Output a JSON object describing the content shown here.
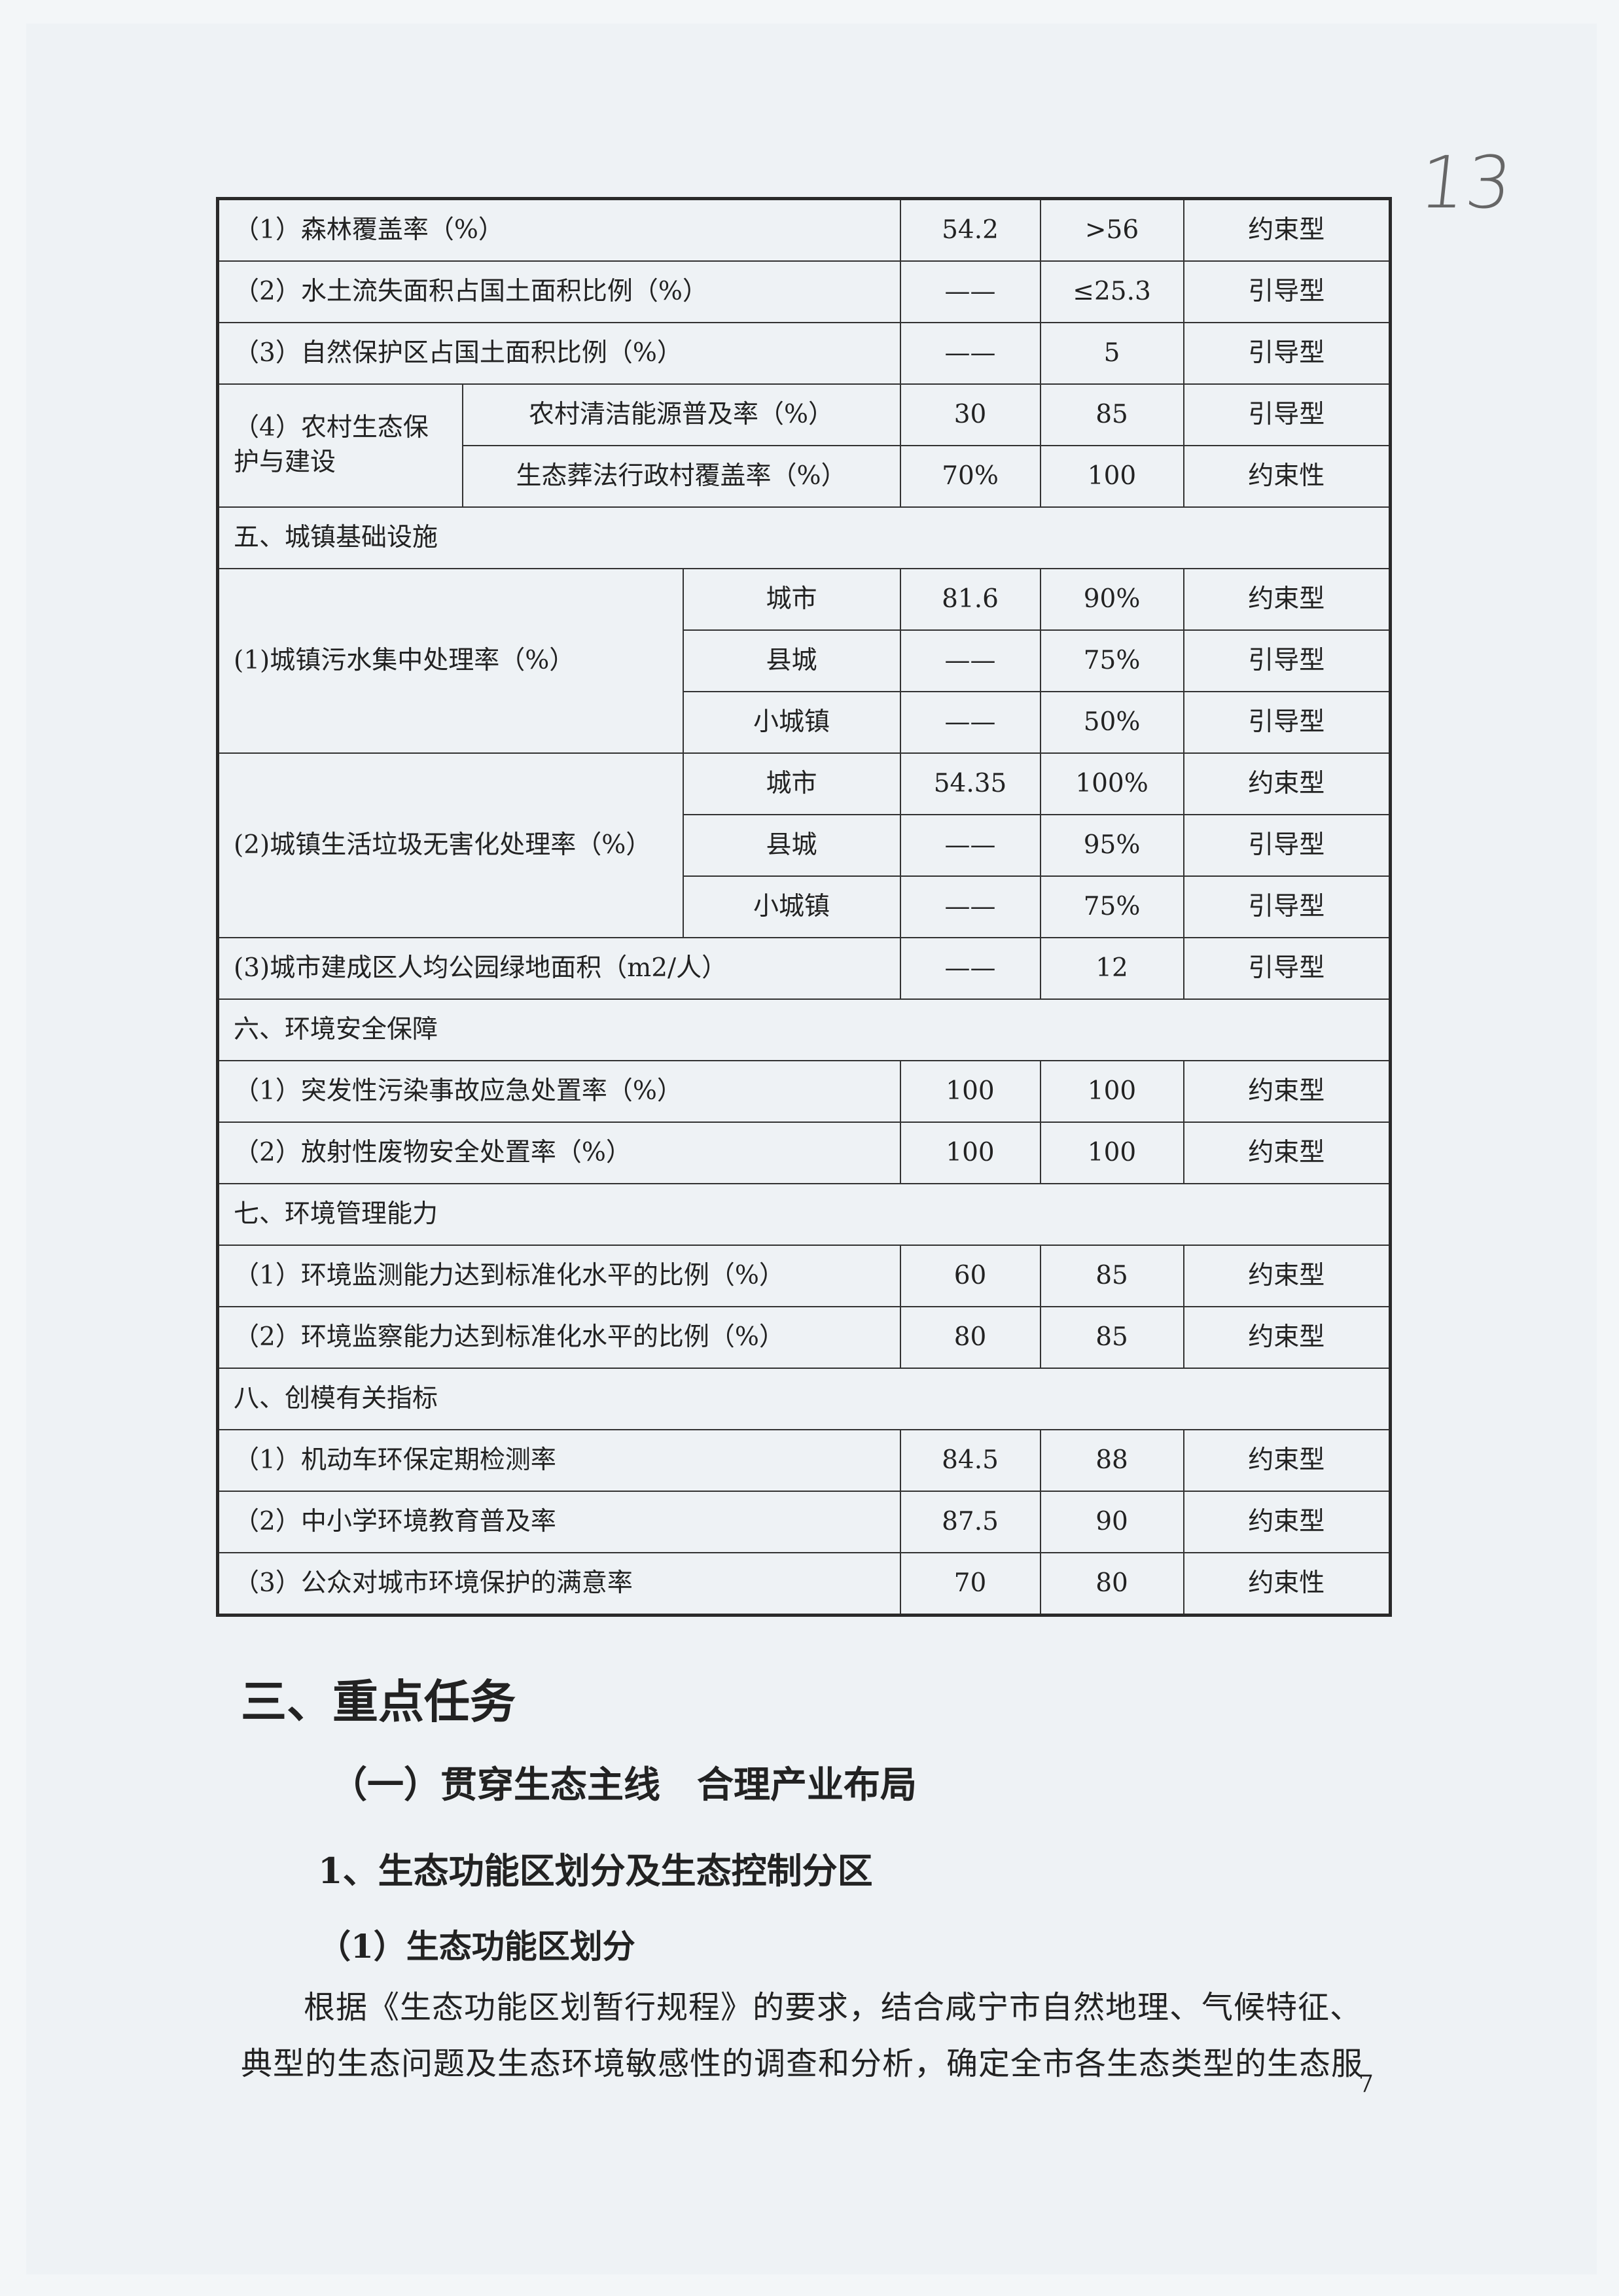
{
  "handwritten_page_mark": "13",
  "table": {
    "rows": [
      {
        "type": "item",
        "label": "（1）森林覆盖率（%）",
        "current": "54.2",
        "target": ">56",
        "kind": "约束型"
      },
      {
        "type": "item",
        "label": "（2）水土流失面积占国土面积比例（%）",
        "current": "——",
        "target": "≤25.3",
        "kind": "引导型"
      },
      {
        "type": "item",
        "label": "（3）自然保护区占国土面积比例（%）",
        "current": "——",
        "target": "5",
        "kind": "引导型"
      },
      {
        "type": "group2",
        "label": "（4）农村生态保护与建设",
        "subs": [
          {
            "label": "农村清洁能源普及率（%）",
            "current": "30",
            "target": "85",
            "kind": "引导型"
          },
          {
            "label": "生态葬法行政村覆盖率（%）",
            "current": "70%",
            "target": "100",
            "kind": "约束性"
          }
        ]
      },
      {
        "type": "section",
        "label": "五、城镇基础设施"
      },
      {
        "type": "group3",
        "label": "(1)城镇污水集中处理率（%）",
        "subs": [
          {
            "label": "城市",
            "current": "81.6",
            "target": "90%",
            "kind": "约束型"
          },
          {
            "label": "县城",
            "current": "——",
            "target": "75%",
            "kind": "引导型"
          },
          {
            "label": "小城镇",
            "current": "——",
            "target": "50%",
            "kind": "引导型"
          }
        ]
      },
      {
        "type": "group3",
        "label": "(2)城镇生活垃圾无害化处理率（%）",
        "subs": [
          {
            "label": "城市",
            "current": "54.35",
            "target": "100%",
            "kind": "约束型"
          },
          {
            "label": "县城",
            "current": "——",
            "target": "95%",
            "kind": "引导型"
          },
          {
            "label": "小城镇",
            "current": "——",
            "target": "75%",
            "kind": "引导型"
          }
        ]
      },
      {
        "type": "item",
        "label": "(3)城市建成区人均公园绿地面积（m2/人）",
        "current": "——",
        "target": "12",
        "kind": "引导型"
      },
      {
        "type": "section",
        "label": "六、环境安全保障"
      },
      {
        "type": "item",
        "label": "（1）突发性污染事故应急处置率（%）",
        "current": "100",
        "target": "100",
        "kind": "约束型"
      },
      {
        "type": "item",
        "label": "（2）放射性废物安全处置率（%）",
        "current": "100",
        "target": "100",
        "kind": "约束型"
      },
      {
        "type": "section",
        "label": "七、环境管理能力"
      },
      {
        "type": "item",
        "label": "（1）环境监测能力达到标准化水平的比例（%）",
        "current": "60",
        "target": "85",
        "kind": "约束型"
      },
      {
        "type": "item",
        "label": "（2）环境监察能力达到标准化水平的比例（%）",
        "current": "80",
        "target": "85",
        "kind": "约束型"
      },
      {
        "type": "section",
        "label": "八、创模有关指标"
      },
      {
        "type": "item",
        "label": "（1）机动车环保定期检测率",
        "current": "84.5",
        "target": "88",
        "kind": "约束型"
      },
      {
        "type": "item",
        "label": "（2）中小学环境教育普及率",
        "current": "87.5",
        "target": "90",
        "kind": "约束型"
      },
      {
        "type": "item",
        "label": "（3）公众对城市环境保护的满意率",
        "current": "70",
        "target": "80",
        "kind": "约束性"
      }
    ]
  },
  "headings": {
    "h1": "三、重点任务",
    "h2": "（一）贯穿生态主线　合理产业布局",
    "h3": "1、生态功能区划分及生态控制分区",
    "h4": "（1）生态功能区划分"
  },
  "paragraph": {
    "line1": "根据《生态功能区划暂行规程》的要求，结合咸宁市自然地理、气候特征、",
    "line2": "典型的生态问题及生态环境敏感性的调查和分析，确定全市各生态类型的生态服"
  },
  "page_number": "7"
}
